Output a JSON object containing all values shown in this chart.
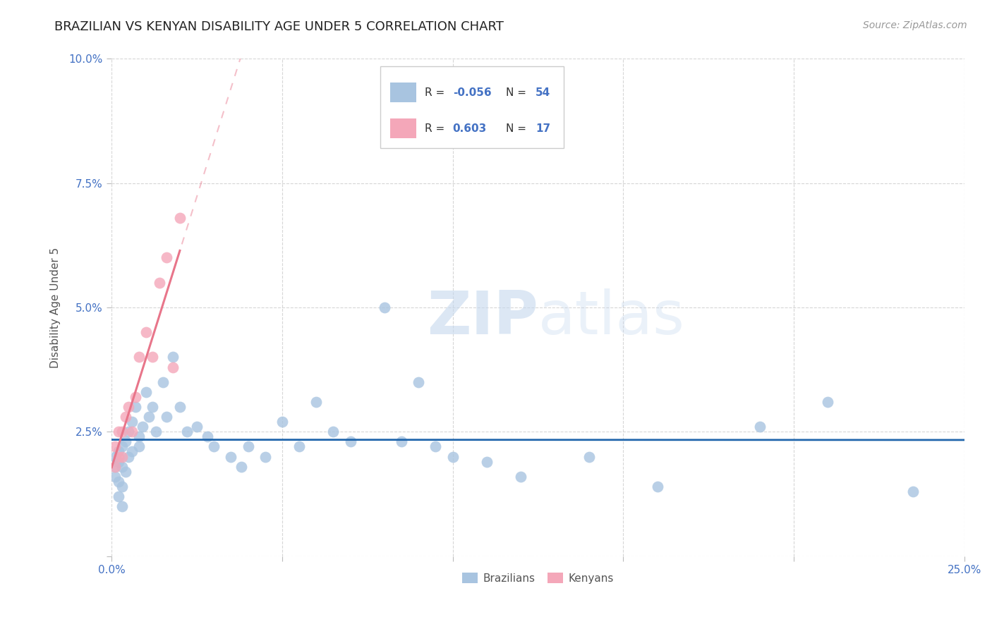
{
  "title": "BRAZILIAN VS KENYAN DISABILITY AGE UNDER 5 CORRELATION CHART",
  "source": "Source: ZipAtlas.com",
  "ylabel": "Disability Age Under 5",
  "xlabel": "",
  "xlim": [
    0.0,
    0.25
  ],
  "ylim": [
    0.0,
    0.1
  ],
  "xticks": [
    0.0,
    0.05,
    0.1,
    0.15,
    0.2,
    0.25
  ],
  "xticklabels": [
    "0.0%",
    "",
    "",
    "",
    "",
    "25.0%"
  ],
  "yticks": [
    0.0,
    0.025,
    0.05,
    0.075,
    0.1
  ],
  "yticklabels": [
    "",
    "2.5%",
    "5.0%",
    "7.5%",
    "10.0%"
  ],
  "brazil_R": -0.056,
  "brazil_N": 54,
  "kenya_R": 0.603,
  "kenya_N": 17,
  "brazil_color": "#a8c4e0",
  "kenya_color": "#f4a7b9",
  "brazil_line_color": "#2166ac",
  "kenya_line_color": "#e8758a",
  "brazil_x": [
    0.001,
    0.001,
    0.001,
    0.002,
    0.002,
    0.002,
    0.002,
    0.003,
    0.003,
    0.003,
    0.003,
    0.004,
    0.004,
    0.005,
    0.005,
    0.006,
    0.006,
    0.007,
    0.008,
    0.008,
    0.009,
    0.01,
    0.011,
    0.012,
    0.013,
    0.015,
    0.016,
    0.018,
    0.02,
    0.022,
    0.025,
    0.028,
    0.03,
    0.035,
    0.038,
    0.04,
    0.045,
    0.05,
    0.055,
    0.06,
    0.065,
    0.07,
    0.08,
    0.085,
    0.09,
    0.095,
    0.1,
    0.11,
    0.12,
    0.14,
    0.16,
    0.19,
    0.21,
    0.235
  ],
  "brazil_y": [
    0.02,
    0.018,
    0.016,
    0.021,
    0.019,
    0.015,
    0.012,
    0.022,
    0.018,
    0.014,
    0.01,
    0.023,
    0.017,
    0.025,
    0.02,
    0.027,
    0.021,
    0.03,
    0.024,
    0.022,
    0.026,
    0.033,
    0.028,
    0.03,
    0.025,
    0.035,
    0.028,
    0.04,
    0.03,
    0.025,
    0.026,
    0.024,
    0.022,
    0.02,
    0.018,
    0.022,
    0.02,
    0.027,
    0.022,
    0.031,
    0.025,
    0.023,
    0.05,
    0.023,
    0.035,
    0.022,
    0.02,
    0.019,
    0.016,
    0.02,
    0.014,
    0.026,
    0.031,
    0.013
  ],
  "kenya_x": [
    0.001,
    0.001,
    0.002,
    0.002,
    0.003,
    0.003,
    0.004,
    0.005,
    0.006,
    0.007,
    0.008,
    0.01,
    0.012,
    0.014,
    0.016,
    0.018,
    0.02
  ],
  "kenya_y": [
    0.018,
    0.022,
    0.025,
    0.02,
    0.025,
    0.02,
    0.028,
    0.03,
    0.025,
    0.032,
    0.04,
    0.045,
    0.04,
    0.055,
    0.06,
    0.038,
    0.068
  ],
  "watermark_zip": "ZIP",
  "watermark_atlas": "atlas",
  "title_fontsize": 13,
  "axis_label_fontsize": 11,
  "tick_fontsize": 11,
  "legend_fontsize": 12,
  "source_fontsize": 10,
  "background_color": "#ffffff",
  "grid_color": "#cccccc",
  "tick_color": "#4472c4",
  "text_dark": "#333333"
}
